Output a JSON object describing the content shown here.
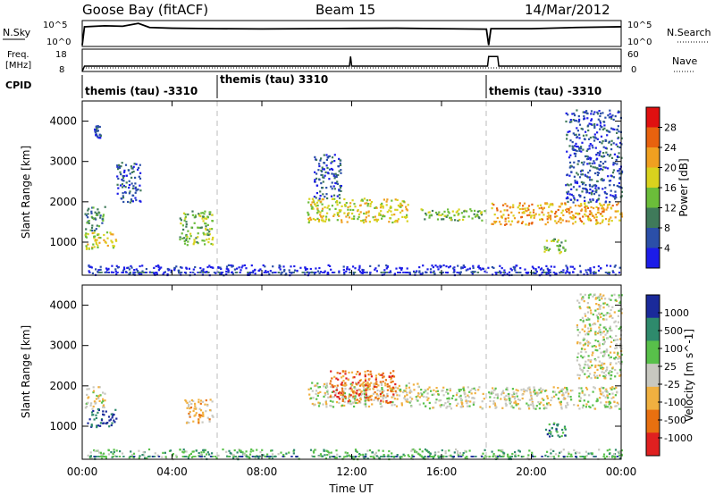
{
  "chart_data": {
    "type": "heatmap",
    "header": {
      "station": "Goose Bay (fitACF)",
      "beam": "Beam 15",
      "date": "14/Mar/2012"
    },
    "x_axis": {
      "label": "Time UT",
      "ticks": [
        "00:00",
        "04:00",
        "08:00",
        "12:00",
        "16:00",
        "20:00",
        "00:00"
      ],
      "range_hours": [
        0,
        24
      ]
    },
    "nsky_panel": {
      "left_label": "N.Sky",
      "right_label": "N.Search",
      "left_ticks": [
        "10^5",
        "10^0"
      ],
      "right_ticks": [
        "10^5",
        "10^0"
      ],
      "series": [
        {
          "t": 0.0,
          "v": 0.02
        },
        {
          "t": 0.1,
          "v": 0.78
        },
        {
          "t": 1.0,
          "v": 0.82
        },
        {
          "t": 1.8,
          "v": 0.8
        },
        {
          "t": 2.5,
          "v": 0.92
        },
        {
          "t": 3.0,
          "v": 0.75
        },
        {
          "t": 4.0,
          "v": 0.72
        },
        {
          "t": 6.0,
          "v": 0.7
        },
        {
          "t": 8.0,
          "v": 0.69
        },
        {
          "t": 10.0,
          "v": 0.7
        },
        {
          "t": 12.0,
          "v": 0.71
        },
        {
          "t": 14.0,
          "v": 0.72
        },
        {
          "t": 16.0,
          "v": 0.7
        },
        {
          "t": 18.0,
          "v": 0.68
        },
        {
          "t": 18.1,
          "v": 0.02
        },
        {
          "t": 18.2,
          "v": 0.7
        },
        {
          "t": 20.0,
          "v": 0.7
        },
        {
          "t": 22.0,
          "v": 0.75
        },
        {
          "t": 24.0,
          "v": 0.78
        }
      ]
    },
    "freq_panel": {
      "left_label_1": "Freq.",
      "left_label_2": "[MHz]",
      "right_label": "Nave",
      "left_ticks": [
        "18",
        "8"
      ],
      "right_ticks": [
        "60",
        "0"
      ],
      "freq_mhz": [
        {
          "t": 0.0,
          "v": 8
        },
        {
          "t": 0.1,
          "v": 10.5
        },
        {
          "t": 11.9,
          "v": 10.5
        },
        {
          "t": 11.95,
          "v": 15
        },
        {
          "t": 12.0,
          "v": 10.5
        },
        {
          "t": 18.05,
          "v": 10.5
        },
        {
          "t": 18.1,
          "v": 15
        },
        {
          "t": 18.5,
          "v": 15
        },
        {
          "t": 18.55,
          "v": 10.5
        },
        {
          "t": 24.0,
          "v": 10.5
        }
      ]
    },
    "cpid": {
      "label": "CPID",
      "segments": [
        {
          "start": 0.0,
          "end": 6.0,
          "text": "themis (tau) -3310"
        },
        {
          "start": 6.0,
          "end": 18.0,
          "text": "themis (tau) 3310"
        },
        {
          "start": 18.0,
          "end": 24.0,
          "text": "themis (tau) -3310"
        }
      ]
    },
    "range_axis": {
      "label": "Slant Range [km]",
      "ticks": [
        1000,
        2000,
        3000,
        4000
      ],
      "range_km": [
        180,
        4500
      ]
    },
    "power_panel": {
      "colorbar_label": "Power [dB]",
      "colorbar_ticks": [
        "28",
        "24",
        "20",
        "16",
        "12",
        "8",
        "4"
      ],
      "colors": [
        "#1c1ce8",
        "#2b4fa8",
        "#3f7a5a",
        "#6bbd3a",
        "#d9d21e",
        "#f0a020",
        "#e8620e",
        "#e01010"
      ],
      "regions": [
        {
          "t0": 0.1,
          "t1": 1.5,
          "r0": 850,
          "r1": 1300,
          "level": 4
        },
        {
          "t0": 0.1,
          "t1": 1.0,
          "r0": 1300,
          "r1": 1900,
          "level": 2
        },
        {
          "t0": 0.5,
          "t1": 0.8,
          "r0": 3600,
          "r1": 3900,
          "level": 1
        },
        {
          "t0": 1.5,
          "t1": 2.6,
          "r0": 2000,
          "r1": 3000,
          "level": 1
        },
        {
          "t0": 4.3,
          "t1": 5.8,
          "r0": 950,
          "r1": 1800,
          "level": 3
        },
        {
          "t0": 10.0,
          "t1": 14.5,
          "r0": 1500,
          "r1": 2100,
          "level": 4
        },
        {
          "t0": 10.3,
          "t1": 11.5,
          "r0": 2100,
          "r1": 3200,
          "level": 1
        },
        {
          "t0": 15.0,
          "t1": 17.9,
          "r0": 1550,
          "r1": 1850,
          "level": 3
        },
        {
          "t0": 18.2,
          "t1": 24.0,
          "r0": 1450,
          "r1": 2000,
          "level": 5
        },
        {
          "t0": 20.5,
          "t1": 21.5,
          "r0": 750,
          "r1": 1100,
          "level": 3
        },
        {
          "t0": 21.5,
          "t1": 24.0,
          "r0": 2000,
          "r1": 4300,
          "level": 1
        },
        {
          "t0": 0.2,
          "t1": 24.0,
          "r0": 200,
          "r1": 450,
          "level": 0
        }
      ]
    },
    "velocity_panel": {
      "colorbar_label": "Velocity [m s^-1]",
      "colorbar_ticks": [
        "1000",
        "500",
        "100",
        "25",
        "-25",
        "-100",
        "-500",
        "-1000"
      ],
      "colors": [
        "#1a2a9a",
        "#2e8a6c",
        "#58c04a",
        "#c8c8c0",
        "#f0b040",
        "#e87010",
        "#e02020"
      ],
      "regions": [
        {
          "t0": 0.2,
          "t1": 1.5,
          "r0": 1000,
          "r1": 1450,
          "level": 0
        },
        {
          "t0": 0.1,
          "t1": 1.0,
          "r0": 1450,
          "r1": 2000,
          "level": 3
        },
        {
          "t0": 4.5,
          "t1": 5.8,
          "r0": 1100,
          "r1": 1700,
          "level": 4
        },
        {
          "t0": 10.0,
          "t1": 15.0,
          "r0": 1500,
          "r1": 2100,
          "level": 3
        },
        {
          "t0": 11.0,
          "t1": 14.0,
          "r0": 1600,
          "r1": 2400,
          "level": 5
        },
        {
          "t0": 15.0,
          "t1": 24.0,
          "r0": 1450,
          "r1": 2000,
          "level": 3
        },
        {
          "t0": 20.5,
          "t1": 21.5,
          "r0": 750,
          "r1": 1100,
          "level": 1
        },
        {
          "t0": 22.0,
          "t1": 24.0,
          "r0": 2200,
          "r1": 4300,
          "level": 3
        },
        {
          "t0": 0.2,
          "t1": 24.0,
          "r0": 200,
          "r1": 450,
          "level": 2
        }
      ]
    }
  }
}
